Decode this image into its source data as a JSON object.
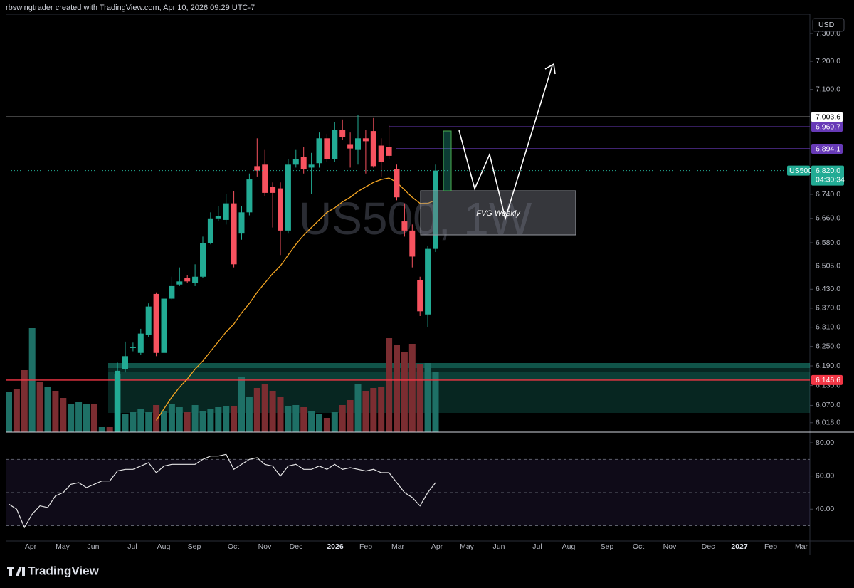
{
  "header": {
    "text": "rbswingtrader created with TradingView.com, Apr 10, 2026 09:29 UTC-7"
  },
  "footer": {
    "brand": "TradingView"
  },
  "chart_data": [
    {
      "type": "candlestick",
      "currency": "USD",
      "watermark": "US500, 1W",
      "annotation": "FVG Weekly",
      "log_scale": true,
      "grid": false,
      "up_color": "#22ab94",
      "down_color": "#f7525f",
      "ma_color": "#f5a623",
      "categories": [
        null,
        null,
        null,
        null,
        null,
        null,
        null,
        null,
        null,
        null,
        null,
        null,
        null,
        null,
        null,
        null,
        null,
        null,
        null,
        null,
        null,
        null,
        null,
        null,
        null,
        null,
        null,
        null,
        null,
        null,
        null,
        null,
        null,
        null,
        null,
        null,
        null,
        null,
        null,
        null,
        null,
        null,
        null,
        null,
        null,
        null,
        null,
        null,
        null,
        null,
        null,
        null,
        null,
        null,
        null,
        null
      ],
      "month_labels": [
        "Apr",
        "May",
        "Jun",
        "Jul",
        "Aug",
        "Sep",
        "Oct",
        "Nov",
        "Dec",
        "2026",
        "Feb",
        "Mar",
        "Apr",
        "May",
        "Jun",
        "Jul",
        "Aug",
        "Sep",
        "Oct",
        "Nov",
        "Dec",
        "2027",
        "Feb",
        "Mar"
      ],
      "open": [
        null,
        null,
        null,
        null,
        null,
        null,
        null,
        null,
        null,
        null,
        null,
        null,
        null,
        null,
        5980,
        6180,
        6245,
        6230,
        6285,
        6415,
        6230,
        6400,
        6445,
        6465,
        6450,
        6470,
        6580,
        6660,
        6655,
        6710,
        6610,
        6680,
        6835,
        6840,
        6765,
        6760,
        6620,
        6840,
        6865,
        6830,
        6845,
        6930,
        6860,
        6960,
        6910,
        6890,
        6930,
        6955,
        6905,
        6900,
        6825,
        6650,
        6620,
        6460,
        6350,
        6560
      ],
      "high": [
        null,
        null,
        null,
        null,
        null,
        null,
        null,
        null,
        null,
        null,
        null,
        null,
        null,
        null,
        6200,
        6265,
        6262,
        6305,
        6385,
        6420,
        6420,
        6470,
        6500,
        6475,
        6510,
        6600,
        6680,
        6700,
        6740,
        6750,
        6700,
        6810,
        6930,
        6890,
        6780,
        6780,
        6860,
        6890,
        6900,
        6880,
        6950,
        6945,
        6985,
        6995,
        6950,
        7010,
        6960,
        7000,
        6930,
        6975,
        6840,
        6710,
        6640,
        6470,
        6570,
        6840
      ],
      "low": [
        null,
        null,
        null,
        null,
        null,
        null,
        null,
        null,
        null,
        null,
        null,
        null,
        null,
        null,
        5950,
        6170,
        6235,
        6225,
        6280,
        6220,
        6225,
        6395,
        6440,
        6450,
        6440,
        6465,
        6575,
        6650,
        6640,
        6500,
        6590,
        6670,
        6800,
        6735,
        6630,
        6540,
        6610,
        6830,
        6810,
        6740,
        6830,
        6850,
        6850,
        6925,
        6830,
        6840,
        6810,
        6830,
        6800,
        6860,
        6720,
        6600,
        6500,
        6345,
        6310,
        6550
      ],
      "close": [
        null,
        null,
        null,
        null,
        null,
        null,
        null,
        null,
        null,
        null,
        null,
        null,
        null,
        null,
        6175,
        6220,
        6248,
        6290,
        6375,
        6230,
        6400,
        6440,
        6455,
        6455,
        6470,
        6580,
        6660,
        6668,
        6710,
        6510,
        6680,
        6790,
        6820,
        6745,
        6745,
        6620,
        6840,
        6860,
        6825,
        6840,
        6930,
        6860,
        6960,
        6935,
        6895,
        6930,
        6920,
        6835,
        6850,
        6870,
        6730,
        6620,
        6535,
        6360,
        6560,
        6820
      ],
      "ma": [
        null,
        null,
        null,
        null,
        null,
        null,
        null,
        null,
        null,
        null,
        null,
        null,
        null,
        null,
        null,
        null,
        null,
        null,
        null,
        6025,
        6060,
        6095,
        6125,
        6150,
        6180,
        6205,
        6235,
        6265,
        6295,
        6320,
        6355,
        6385,
        6420,
        6450,
        6480,
        6505,
        6540,
        6575,
        6605,
        6630,
        6655,
        6680,
        6695,
        6715,
        6730,
        6750,
        6765,
        6780,
        6790,
        6795,
        6780,
        6755,
        6730,
        6710,
        6710,
        6720
      ],
      "ylim": [
        5990,
        7370
      ],
      "yticks": [
        {
          "value": 7300,
          "label": "7,300.0"
        },
        {
          "value": 7200,
          "label": "7,200.0"
        },
        {
          "value": 7100,
          "label": "7,100.0"
        },
        {
          "value": 6740,
          "label": "6,740.0"
        },
        {
          "value": 6660,
          "label": "6,660.0"
        },
        {
          "value": 6580,
          "label": "6,580.0"
        },
        {
          "value": 6505,
          "label": "6,505.0"
        },
        {
          "value": 6430,
          "label": "6,430.0"
        },
        {
          "value": 6370,
          "label": "6,370.0"
        },
        {
          "value": 6310,
          "label": "6,310.0"
        },
        {
          "value": 6250,
          "label": "6,250.0"
        },
        {
          "value": 6190,
          "label": "6,190.0"
        },
        {
          "value": 6130,
          "label": "6,130.0"
        },
        {
          "value": 6070,
          "label": "6,070.0"
        },
        {
          "value": 6018,
          "label": "6,018.0"
        }
      ],
      "price_lines": [
        {
          "value": 7003.6,
          "label": "7,003.6",
          "color": "#ffffff"
        },
        {
          "value": 6969.7,
          "label": "6,969.7",
          "color": "#673ab7"
        },
        {
          "value": 6894.1,
          "label": "6,894.1",
          "color": "#673ab7"
        },
        {
          "value": 6146.6,
          "label": "6,146.6",
          "color": "#f23645"
        }
      ],
      "last": {
        "value": 6820,
        "label": "6,820.0",
        "symbol": "US500",
        "countdown": "04:30:34"
      }
    },
    {
      "type": "bar",
      "ylim": [
        0,
        150
      ],
      "values": [
        57,
        60,
        87,
        146,
        70,
        63,
        58,
        48,
        40,
        42,
        40,
        40,
        7,
        7,
        82,
        25,
        28,
        33,
        28,
        38,
        30,
        40,
        35,
        28,
        38,
        30,
        33,
        35,
        37,
        37,
        78,
        50,
        62,
        68,
        58,
        50,
        37,
        38,
        35,
        30,
        25,
        20,
        28,
        38,
        45,
        68,
        58,
        62,
        63,
        132,
        122,
        112,
        124,
        95,
        97,
        85
      ],
      "colors": [
        "#1e7066",
        "#7b2d31",
        "#7b2d31",
        "#1e7066",
        "#7b2d31",
        "#1e7066",
        "#7b2d31",
        "#7b2d31",
        "#1e7066",
        "#1e7066",
        "#1e7066",
        "#7b2d31",
        "#1e7066",
        "#7b2d31",
        "#1e7066",
        "#1e7066",
        "#1e7066",
        "#1e7066",
        "#1e7066",
        "#7b2d31",
        "#1e7066",
        "#1e7066",
        "#1e7066",
        "#7b2d31",
        "#1e7066",
        "#1e7066",
        "#1e7066",
        "#1e7066",
        "#1e7066",
        "#7b2d31",
        "#1e7066",
        "#1e7066",
        "#7b2d31",
        "#7b2d31",
        "#7b2d31",
        "#7b2d31",
        "#1e7066",
        "#1e7066",
        "#7b2d31",
        "#1e7066",
        "#1e7066",
        "#7b2d31",
        "#1e7066",
        "#7b2d31",
        "#7b2d31",
        "#1e7066",
        "#7b2d31",
        "#7b2d31",
        "#7b2d31",
        "#7b2d31",
        "#7b2d31",
        "#7b2d31",
        "#7b2d31",
        "#7b2d31",
        "#1e7066",
        "#1e7066"
      ]
    },
    {
      "type": "line",
      "color": "#e6e6e6",
      "values": [
        43,
        40,
        29,
        37,
        42,
        41,
        48,
        50,
        55,
        56,
        53,
        55,
        57,
        57,
        63,
        64,
        64,
        66,
        68,
        62,
        66,
        67,
        67,
        67,
        67,
        70,
        72,
        72,
        73,
        64,
        67,
        70,
        71,
        67,
        66,
        60,
        66,
        67,
        64,
        64,
        66,
        64,
        67,
        64,
        65,
        64,
        63,
        64,
        62,
        62,
        56,
        50,
        47,
        42,
        50,
        56
      ],
      "ylim": [
        20.8,
        84.3
      ],
      "yticks": [
        {
          "value": 80,
          "label": "80.00"
        },
        {
          "value": 60,
          "label": "60.00"
        },
        {
          "value": 40,
          "label": "40.00"
        }
      ],
      "levels": [
        70,
        50,
        30
      ]
    }
  ]
}
